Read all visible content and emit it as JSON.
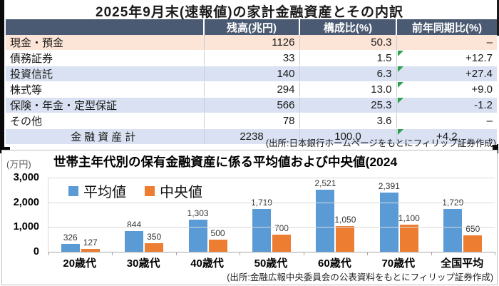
{
  "table": {
    "title": "2025年9月末(速報値)の家計金融資産とその内訳",
    "headers": {
      "item": "",
      "balance": "残高(兆円)",
      "share": "構成比(%)",
      "yoy": "前年同期比(%)"
    },
    "rows": [
      {
        "label": "現金・預金",
        "balance": "1126",
        "share": "50.3",
        "yoy": "–"
      },
      {
        "label": "債務証券",
        "balance": "33",
        "share": "1.5",
        "yoy": "+12.7"
      },
      {
        "label": "投資信託",
        "balance": "140",
        "share": "6.3",
        "yoy": "+27.4"
      },
      {
        "label": "株式等",
        "balance": "294",
        "share": "13.0",
        "yoy": "+9.0"
      },
      {
        "label": "保険・年金・定型保証",
        "balance": "566",
        "share": "25.3",
        "yoy": "-1.2"
      },
      {
        "label": "その他",
        "balance": "78",
        "share": "3.6",
        "yoy": "–"
      }
    ],
    "total": {
      "label": "金融資産計",
      "balance": "2238",
      "share": "100.0",
      "yoy": "+4.2"
    },
    "source": "(出所:日本銀行ホームページをもとにフィリップ証券作成)"
  },
  "chart_data": {
    "type": "bar",
    "title": "世帯主年代別の保有金融資産に係る平均値および中央値(2024",
    "ylabel": "(万円)",
    "ylim": [
      0,
      3000
    ],
    "yticks": [
      "0",
      "1,000",
      "2,000",
      "3,000"
    ],
    "grid": true,
    "legend_position": "top-left-inside",
    "categories": [
      "20歳代",
      "30歳代",
      "40歳代",
      "50歳代",
      "60歳代",
      "70歳代",
      "全国平均"
    ],
    "series": [
      {
        "name": "平均値",
        "color": "#5b9bd5",
        "values": [
          326,
          844,
          1303,
          1719,
          2521,
          2391,
          1729
        ],
        "labels": [
          "326",
          "844",
          "1,303",
          "1,719",
          "2,521",
          "2,391",
          "1,729"
        ]
      },
      {
        "name": "中央値",
        "color": "#ed7d31",
        "values": [
          127,
          350,
          500,
          700,
          1050,
          1100,
          650
        ],
        "labels": [
          "127",
          "350",
          "500",
          "700",
          "1,050",
          "1,100",
          "650"
        ]
      }
    ],
    "source": "(出所:金融広報中央委員会の公表資料をもとにフィリップ証券作成)"
  }
}
